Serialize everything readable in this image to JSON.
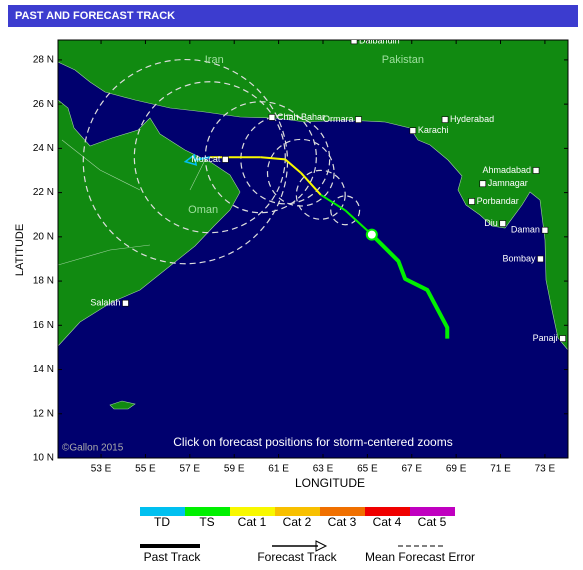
{
  "header": {
    "title": "PAST AND FORECAST TRACK"
  },
  "map": {
    "lonlim": [
      51.06,
      74.04
    ],
    "latlim": [
      10,
      28.9
    ],
    "lonticks": [
      {
        "value": 53,
        "label": "53 E"
      },
      {
        "value": 55,
        "label": "55 E"
      },
      {
        "value": 57,
        "label": "57 E"
      },
      {
        "value": 59,
        "label": "59 E"
      },
      {
        "value": 61,
        "label": "61 E"
      },
      {
        "value": 63,
        "label": "63 E"
      },
      {
        "value": 65,
        "label": "65 E"
      },
      {
        "value": 67,
        "label": "67 E"
      },
      {
        "value": 69,
        "label": "69 E"
      },
      {
        "value": 71,
        "label": "71 E"
      },
      {
        "value": 73,
        "label": "73 E"
      }
    ],
    "latticks": [
      {
        "value": 10,
        "label": "10 N"
      },
      {
        "value": 12,
        "label": "12 N"
      },
      {
        "value": 14,
        "label": "14 N"
      },
      {
        "value": 16,
        "label": "16 N"
      },
      {
        "value": 18,
        "label": "18 N"
      },
      {
        "value": 20,
        "label": "20 N"
      },
      {
        "value": 22,
        "label": "22 N"
      },
      {
        "value": 24,
        "label": "24 N"
      },
      {
        "value": 26,
        "label": "26 N"
      },
      {
        "value": 28,
        "label": "28 N"
      }
    ],
    "xlabel": "LONGITUDE",
    "ylabel": "LATITUDE",
    "note": "Click on forecast positions for storm-centered zooms",
    "credit": "©Gallon 2015",
    "places": [
      {
        "name": "Dalbandin",
        "lon": 64.4,
        "lat": 28.86,
        "marker": true
      },
      {
        "name": "Iran",
        "lon": 58.1,
        "lat": 28.0,
        "marker": false
      },
      {
        "name": "Pakistan",
        "lon": 66.6,
        "lat": 28.0,
        "marker": false
      },
      {
        "name": "Chah Bahar",
        "lon": 60.7,
        "lat": 25.4,
        "marker": true
      },
      {
        "name": "Ormara",
        "lon": 64.6,
        "lat": 25.3,
        "marker": true
      },
      {
        "name": "Karachi",
        "lon": 67.05,
        "lat": 24.8,
        "marker": true
      },
      {
        "name": "Hyderabad",
        "lon": 68.5,
        "lat": 25.3,
        "marker": true
      },
      {
        "name": "Muscat",
        "lon": 58.6,
        "lat": 23.5,
        "marker": true
      },
      {
        "name": "Ahmadabad",
        "lon": 72.6,
        "lat": 23.0,
        "marker": true
      },
      {
        "name": "Jamnagar",
        "lon": 70.2,
        "lat": 22.4,
        "marker": true
      },
      {
        "name": "Porbandar",
        "lon": 69.7,
        "lat": 21.6,
        "marker": true
      },
      {
        "name": "Diu",
        "lon": 71.1,
        "lat": 20.6,
        "marker": true
      },
      {
        "name": "Daman",
        "lon": 73.0,
        "lat": 20.3,
        "marker": true
      },
      {
        "name": "Oman",
        "lon": 57.6,
        "lat": 21.2,
        "marker": false
      },
      {
        "name": "Bombay",
        "lon": 72.8,
        "lat": 19.0,
        "marker": true
      },
      {
        "name": "Salalah",
        "lon": 54.1,
        "lat": 17.0,
        "marker": true
      },
      {
        "name": "Panaji",
        "lon": 73.8,
        "lat": 15.4,
        "marker": true
      }
    ],
    "past_track": {
      "category": "TS",
      "lon": [
        68.6,
        68.6,
        67.7,
        66.7,
        66.4,
        65.2
      ],
      "lat": [
        15.4,
        15.9,
        17.6,
        18.1,
        18.9,
        20.1
      ]
    },
    "forecast": {
      "lon": [
        65.2,
        64.0,
        62.9,
        62.0,
        61.3,
        60.2,
        57.9,
        56.8
      ],
      "lat": [
        20.1,
        21.2,
        21.9,
        22.9,
        23.5,
        23.6,
        23.6,
        23.4
      ],
      "category": [
        "TS",
        "TS",
        "TS",
        "Cat 1",
        "Cat 1",
        "Cat 1",
        "Cat 1",
        "TD"
      ],
      "error": [
        null,
        0.65,
        1.1,
        1.5,
        2.0,
        2.5,
        3.4,
        4.6
      ]
    }
  },
  "legend": {
    "categories": [
      {
        "name": "TD",
        "color": "#00c0f0"
      },
      {
        "name": "TS",
        "color": "#00f000"
      },
      {
        "name": "Cat 1",
        "color": "#f8f800"
      },
      {
        "name": "Cat 2",
        "color": "#f8c000"
      },
      {
        "name": "Cat 3",
        "color": "#f07000"
      },
      {
        "name": "Cat 4",
        "color": "#f00000"
      },
      {
        "name": "Cat 5",
        "color": "#c000c0"
      }
    ],
    "past_track": "Past Track",
    "forecast_track": "Forecast Track",
    "error": "Mean Forecast Error"
  }
}
